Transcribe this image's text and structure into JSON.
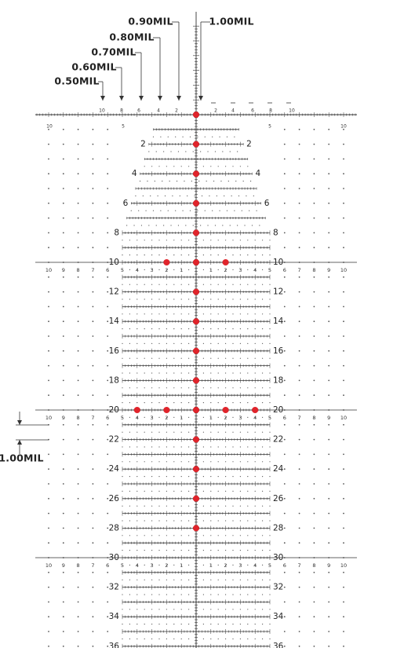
{
  "stadia_callouts": [
    "0.50MIL",
    "0.60MIL",
    "0.70MIL",
    "0.80MIL",
    "0.90MIL",
    "1.00MIL"
  ],
  "spacing_callout": "1.00MIL",
  "top_scale": {
    "upper_labels": [
      "10",
      "8",
      "6",
      "4",
      "2",
      "2",
      "4",
      "6",
      "8",
      "10"
    ],
    "lower_labels": [
      "10",
      "5",
      "5",
      "10"
    ]
  },
  "elevation_labels": [
    "2",
    "4",
    "6",
    "8",
    "10",
    "12",
    "14",
    "16",
    "18",
    "20",
    "22",
    "24",
    "26",
    "28",
    "30",
    "32",
    "34",
    "36"
  ],
  "windage_labels": [
    "10",
    "9",
    "8",
    "7",
    "6",
    "5",
    "4",
    "3",
    "2",
    "1"
  ]
}
